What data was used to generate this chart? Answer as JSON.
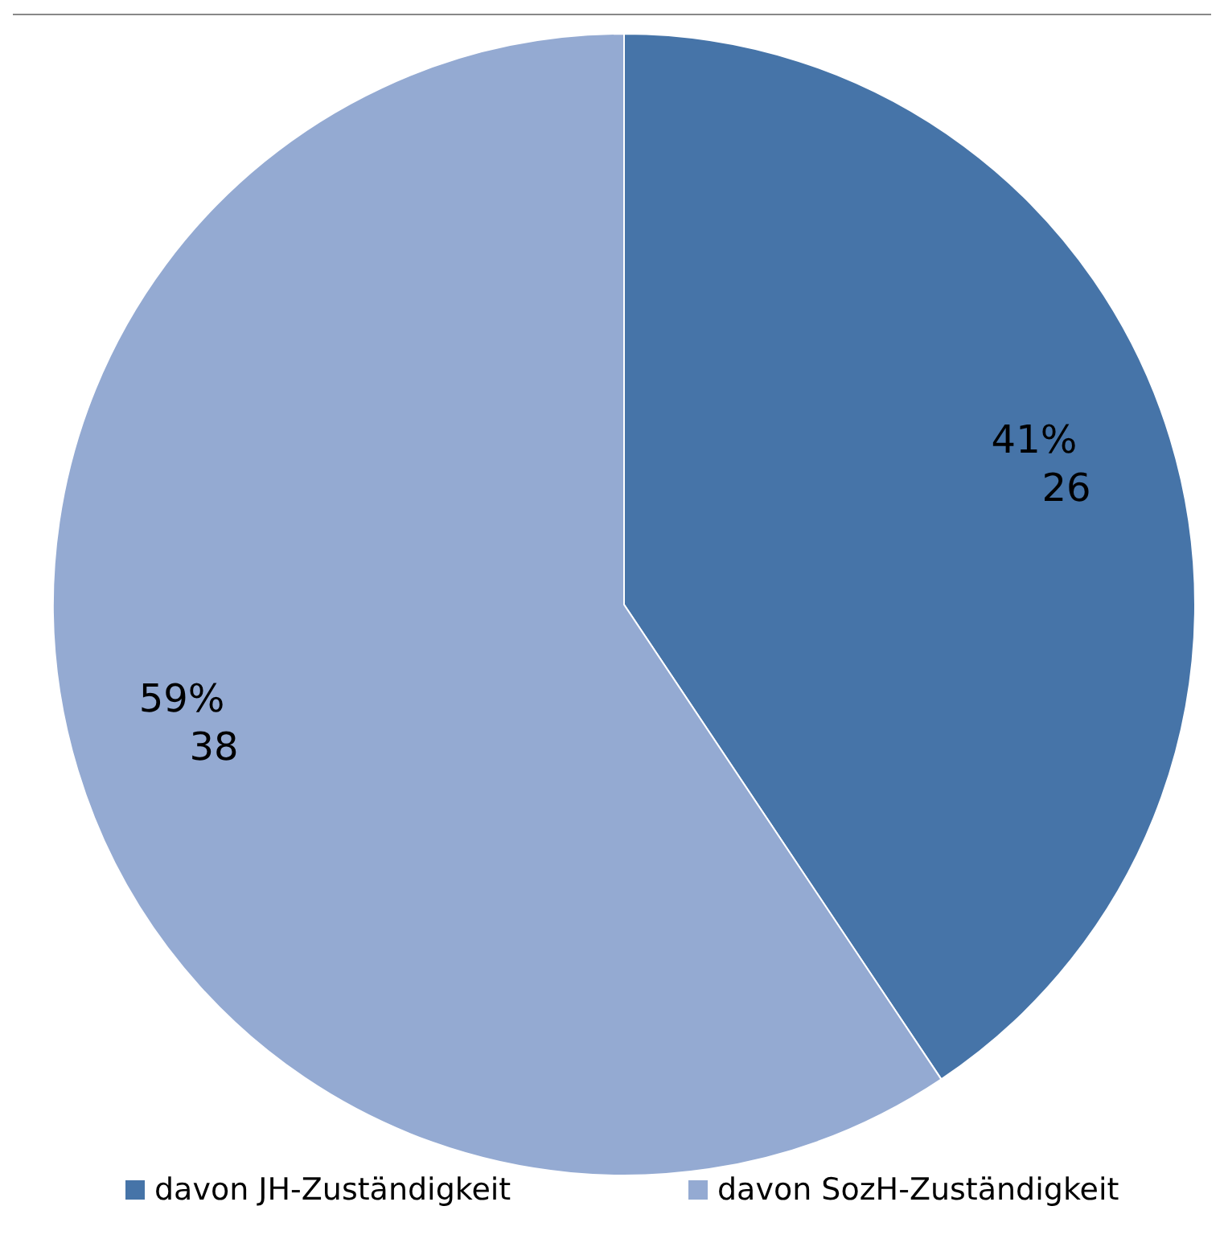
{
  "chart_data": {
    "type": "pie",
    "categories": [
      "davon JH-Zuständigkeit",
      "davon SozH-Zuständigkeit"
    ],
    "values": [
      26,
      38
    ],
    "colors": [
      "#4674a8",
      "#94aad2"
    ],
    "value_labels": [
      "41%\n26",
      "59%\n38"
    ],
    "legend": "bottom"
  }
}
